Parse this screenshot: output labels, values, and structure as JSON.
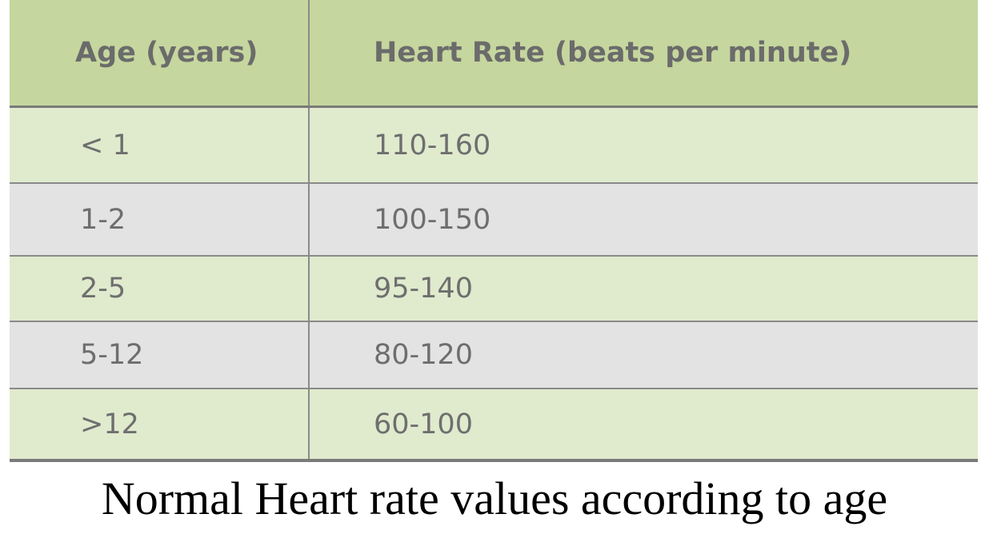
{
  "table": {
    "headers": [
      "Age (years)",
      "Heart Rate (beats per minute)"
    ],
    "rows": [
      [
        "< 1",
        "110-160"
      ],
      [
        "1-2",
        "100-150"
      ],
      [
        "2-5",
        "95-140"
      ],
      [
        "5-12",
        "80-120"
      ],
      [
        ">12",
        "60-100"
      ]
    ],
    "colors": {
      "header_bg": "#c5d69e",
      "row_green": "#e0eacd",
      "row_gray": "#e3e3e3",
      "text": "#6e6e6e"
    }
  },
  "caption": "Normal Heart rate values according to age"
}
